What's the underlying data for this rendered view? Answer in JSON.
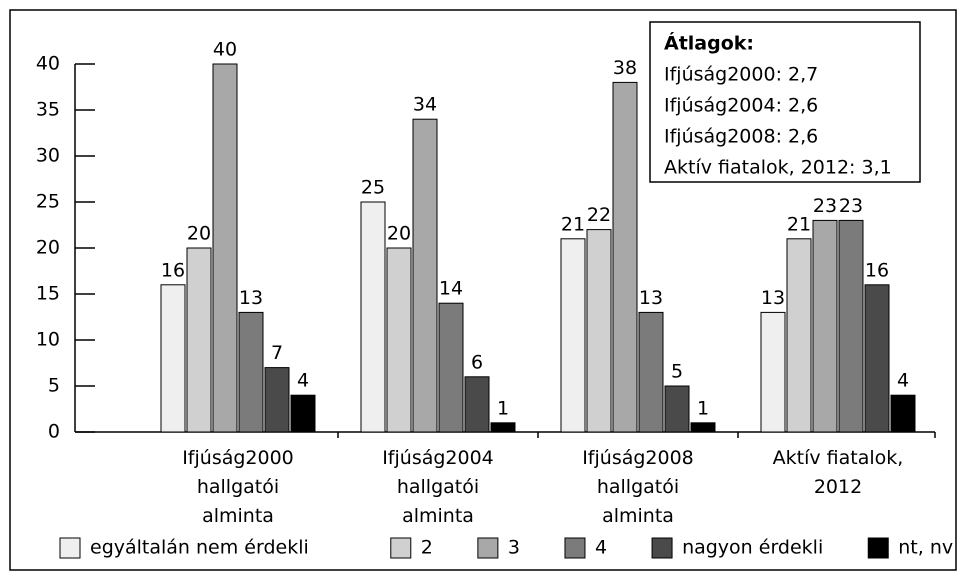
{
  "chart_data": {
    "type": "bar",
    "categories": [
      "Ifjúság2000\nhallgatói\nalminta",
      "Ifjúság2004\nhallgatói\nalminta",
      "Ifjúság2008\nhallgatói\nalminta",
      "Aktív fiatalok,\n2012"
    ],
    "series": [
      {
        "name": "egyáltalán nem érdekli",
        "color": "#efefef",
        "values": [
          16,
          25,
          21,
          13
        ]
      },
      {
        "name": "2",
        "color": "#d0d0d0",
        "values": [
          20,
          20,
          22,
          21
        ]
      },
      {
        "name": "3",
        "color": "#a8a8a8",
        "values": [
          40,
          34,
          38,
          23
        ]
      },
      {
        "name": "4",
        "color": "#7b7b7b",
        "values": [
          13,
          14,
          13,
          23
        ]
      },
      {
        "name": "nagyon érdekli",
        "color": "#4a4a4a",
        "values": [
          7,
          6,
          5,
          16
        ]
      },
      {
        "name": "nt, nv",
        "color": "#000000",
        "values": [
          4,
          1,
          1,
          4
        ]
      }
    ],
    "ylim": [
      0,
      40
    ],
    "yticks": [
      0,
      5,
      10,
      15,
      20,
      25,
      30,
      35,
      40
    ],
    "legend": "bottom",
    "annotation": [
      "Átlagok:",
      "Ifjúság2000: 2,7",
      "Ifjúság2004: 2,6",
      "Ifjúság2008: 2,6",
      "Aktív fiatalok, 2012: 3,1"
    ]
  }
}
